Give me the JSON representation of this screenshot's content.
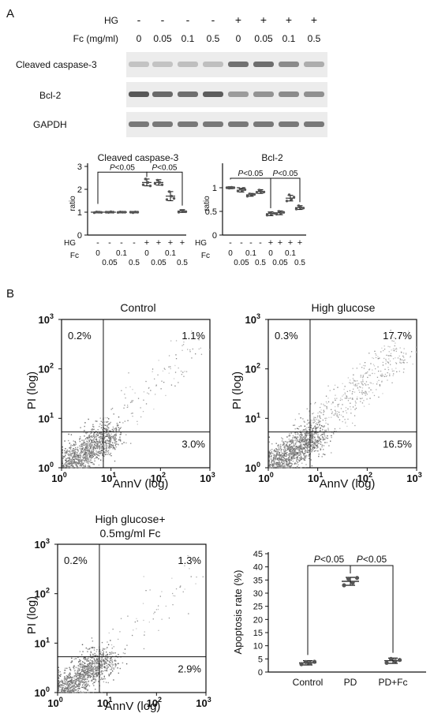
{
  "panels": {
    "a": "A",
    "b": "B"
  },
  "western": {
    "hg_label": "HG",
    "hg_signs": [
      "-",
      "-",
      "-",
      "-",
      "+",
      "+",
      "+",
      "+"
    ],
    "fc_label": "Fc (mg/ml)",
    "fc_values": [
      "0",
      "0.05",
      "0.1",
      "0.5",
      "0",
      "0.05",
      "0.1",
      "0.5"
    ],
    "bands": [
      {
        "label": "Cleaved caspase-3",
        "intensity": [
          0.12,
          0.12,
          0.14,
          0.14,
          0.6,
          0.62,
          0.45,
          0.25
        ]
      },
      {
        "label": "Bcl-2",
        "intensity": [
          0.75,
          0.65,
          0.62,
          0.72,
          0.35,
          0.4,
          0.45,
          0.42
        ]
      },
      {
        "label": "GAPDH",
        "intensity": [
          0.55,
          0.55,
          0.55,
          0.55,
          0.55,
          0.55,
          0.55,
          0.55
        ]
      }
    ]
  },
  "chart_data": [
    {
      "type": "scatter",
      "title": "Cleaved caspase-3",
      "ylabel": "ratio",
      "ylim": [
        0,
        3
      ],
      "yticks": [
        "0",
        "1",
        "2",
        "3"
      ],
      "row_labels": [
        "HG",
        "Fc"
      ],
      "hg_signs": [
        "-",
        "-",
        "-",
        "-",
        "+",
        "+",
        "+",
        "+"
      ],
      "fc_top": [
        "0",
        "",
        "0.1",
        "",
        "0",
        "",
        "0.1",
        ""
      ],
      "fc_bottom": [
        "",
        "0.05",
        "",
        "0.5",
        "",
        "0.05",
        "",
        "0.5"
      ],
      "means": [
        1.0,
        1.0,
        1.0,
        1.0,
        2.3,
        2.3,
        1.7,
        1.05
      ],
      "sd": [
        0.03,
        0.03,
        0.03,
        0.03,
        0.15,
        0.12,
        0.2,
        0.06
      ],
      "points": [
        [
          0.98,
          1.01,
          1.0,
          0.99
        ],
        [
          1.0,
          0.99,
          1.02,
          1.0
        ],
        [
          0.99,
          1.01,
          1.0,
          1.0
        ],
        [
          1.0,
          0.98,
          1.01,
          1.0
        ],
        [
          2.2,
          2.45,
          2.3,
          2.15
        ],
        [
          2.25,
          2.4,
          2.3,
          2.2
        ],
        [
          1.55,
          1.9,
          1.7,
          1.6
        ],
        [
          1.0,
          1.08,
          1.05,
          1.02
        ]
      ],
      "annotations": [
        {
          "text": "P<0.05",
          "from": 0,
          "to": 4,
          "y": 2.75
        },
        {
          "text": "P<0.05",
          "from": 4,
          "to": 7,
          "y": 2.75
        }
      ]
    },
    {
      "type": "scatter",
      "title": "Bcl-2",
      "ylabel": "ratio",
      "ylim": [
        0,
        1.45
      ],
      "yticks": [
        "0",
        "0.5",
        "1"
      ],
      "row_labels": [
        "HG",
        "Fc"
      ],
      "hg_signs": [
        "-",
        "-",
        "-",
        "-",
        "+",
        "+",
        "+",
        "+"
      ],
      "fc_top": [
        "0",
        "",
        "0.1",
        "",
        "0",
        "",
        "0.1",
        ""
      ],
      "fc_bottom": [
        "",
        "0.05",
        "",
        "0.5",
        "",
        "0.05",
        "",
        "0.5"
      ],
      "means": [
        1.0,
        0.95,
        0.85,
        0.92,
        0.45,
        0.47,
        0.78,
        0.58
      ],
      "sd": [
        0.02,
        0.04,
        0.03,
        0.04,
        0.04,
        0.04,
        0.06,
        0.04
      ],
      "points": [
        [
          1.0,
          0.99,
          1.01,
          1.0
        ],
        [
          0.93,
          0.97,
          0.95,
          0.96
        ],
        [
          0.82,
          0.87,
          0.85,
          0.86
        ],
        [
          0.9,
          0.95,
          0.92,
          0.91
        ],
        [
          0.42,
          0.47,
          0.45,
          0.46
        ],
        [
          0.44,
          0.5,
          0.47,
          0.48
        ],
        [
          0.72,
          0.85,
          0.76,
          0.8
        ],
        [
          0.55,
          0.62,
          0.58,
          0.57
        ]
      ],
      "annotations": [
        {
          "text": "P<0.05",
          "from": 0,
          "to": 4,
          "y": 1.2
        },
        {
          "text": "P<0.05",
          "from": 4,
          "to": 7,
          "y": 1.2
        }
      ]
    },
    {
      "type": "scatter",
      "title": "Control",
      "xlabel": "AnnV (log)",
      "ylabel": "PI (log)",
      "xscale": "log",
      "yscale": "log",
      "xlim": [
        1,
        1000
      ],
      "ylim": [
        1,
        1000
      ],
      "tick_labels": [
        "10",
        "10",
        "10",
        "10"
      ],
      "tick_exps": [
        "0",
        "1",
        "2",
        "3"
      ],
      "gate": [
        7,
        5.3
      ],
      "quadrants": {
        "upper_left": "0.2%",
        "upper_right": "1.1%",
        "lower_right": "3.0%"
      },
      "upper_right_weight": 0.09
    },
    {
      "type": "scatter",
      "title": "High glucose",
      "xlabel": "AnnV (log)",
      "ylabel": "PI (log)",
      "xscale": "log",
      "yscale": "log",
      "xlim": [
        1,
        1000
      ],
      "ylim": [
        1,
        1000
      ],
      "tick_labels": [
        "10",
        "10",
        "10",
        "10"
      ],
      "tick_exps": [
        "0",
        "1",
        "2",
        "3"
      ],
      "gate": [
        7,
        5.3
      ],
      "quadrants": {
        "upper_left": "0.3%",
        "upper_right": "17.7%",
        "lower_right": "16.5%"
      },
      "upper_right_weight": 0.35
    },
    {
      "type": "scatter",
      "title": "High glucose+ 0.5mg/ml Fc",
      "title_lines": [
        "High glucose+",
        "0.5mg/ml Fc"
      ],
      "xlabel": "AnnV (log)",
      "ylabel": "PI (log)",
      "xscale": "log",
      "yscale": "log",
      "xlim": [
        1,
        1000
      ],
      "ylim": [
        1,
        1000
      ],
      "tick_labels": [
        "10",
        "10",
        "10",
        "10"
      ],
      "tick_exps": [
        "0",
        "1",
        "2",
        "3"
      ],
      "gate": [
        7,
        5.3
      ],
      "quadrants": {
        "upper_left": "0.2%",
        "upper_right": "1.3%",
        "lower_right": "2.9%"
      },
      "upper_right_weight": 0.05
    },
    {
      "type": "scatter",
      "title": "",
      "xlabel": "",
      "ylabel": "Apoptosis rate (%)",
      "ylim": [
        0,
        45
      ],
      "yticks": [
        "0",
        "5",
        "10",
        "15",
        "20",
        "25",
        "30",
        "35",
        "40",
        "45"
      ],
      "categories": [
        "Control",
        "PD",
        "PD+Fc"
      ],
      "means": [
        3.5,
        34.5,
        4.3
      ],
      "sd": [
        0.8,
        1.5,
        1.0
      ],
      "points": [
        [
          3.0,
          3.8,
          3.4,
          3.9
        ],
        [
          33.0,
          35.5,
          34.0,
          35.8
        ],
        [
          3.5,
          5.0,
          4.2,
          4.6
        ]
      ],
      "annotations": [
        {
          "text": "P<0.05",
          "from": 0,
          "to": 1,
          "y": 40.5
        },
        {
          "text": "P<0.05",
          "from": 1,
          "to": 2,
          "y": 40.5
        }
      ]
    }
  ]
}
